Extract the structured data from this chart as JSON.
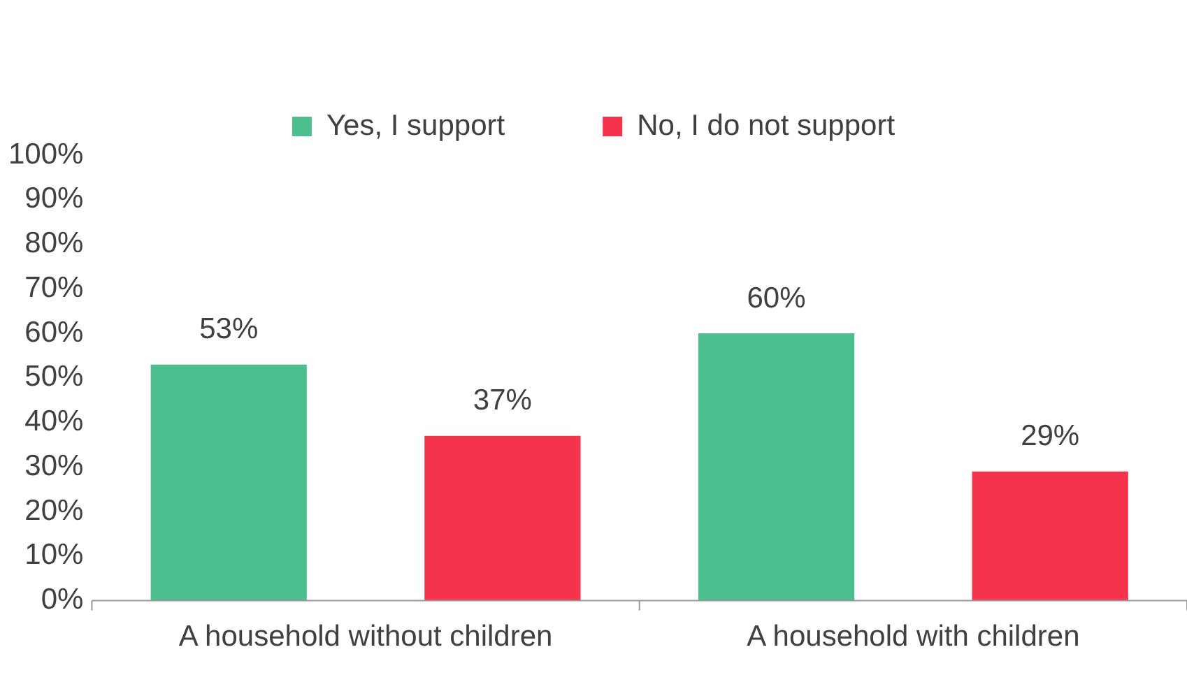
{
  "chart_data": {
    "type": "bar",
    "categories": [
      "A household without children",
      "A household with children"
    ],
    "series": [
      {
        "name": "Yes, I support",
        "color": "#4dbf8f",
        "values": [
          53,
          60
        ],
        "value_labels": [
          "53%",
          "60%"
        ]
      },
      {
        "name": "No, I do not support",
        "color": "#f5334a",
        "values": [
          37,
          29
        ],
        "value_labels": [
          "37%",
          "29%"
        ]
      }
    ],
    "ylim": [
      0,
      100
    ],
    "yticks": [
      {
        "value": 0,
        "label": "0%"
      },
      {
        "value": 10,
        "label": "10%"
      },
      {
        "value": 20,
        "label": "20%"
      },
      {
        "value": 30,
        "label": "30%"
      },
      {
        "value": 40,
        "label": "40%"
      },
      {
        "value": 50,
        "label": "50%"
      },
      {
        "value": 60,
        "label": "60%"
      },
      {
        "value": 70,
        "label": "70%"
      },
      {
        "value": 80,
        "label": "80%"
      },
      {
        "value": 90,
        "label": "90%"
      },
      {
        "value": 100,
        "label": "100%"
      }
    ],
    "grid": false,
    "legend": "top"
  }
}
